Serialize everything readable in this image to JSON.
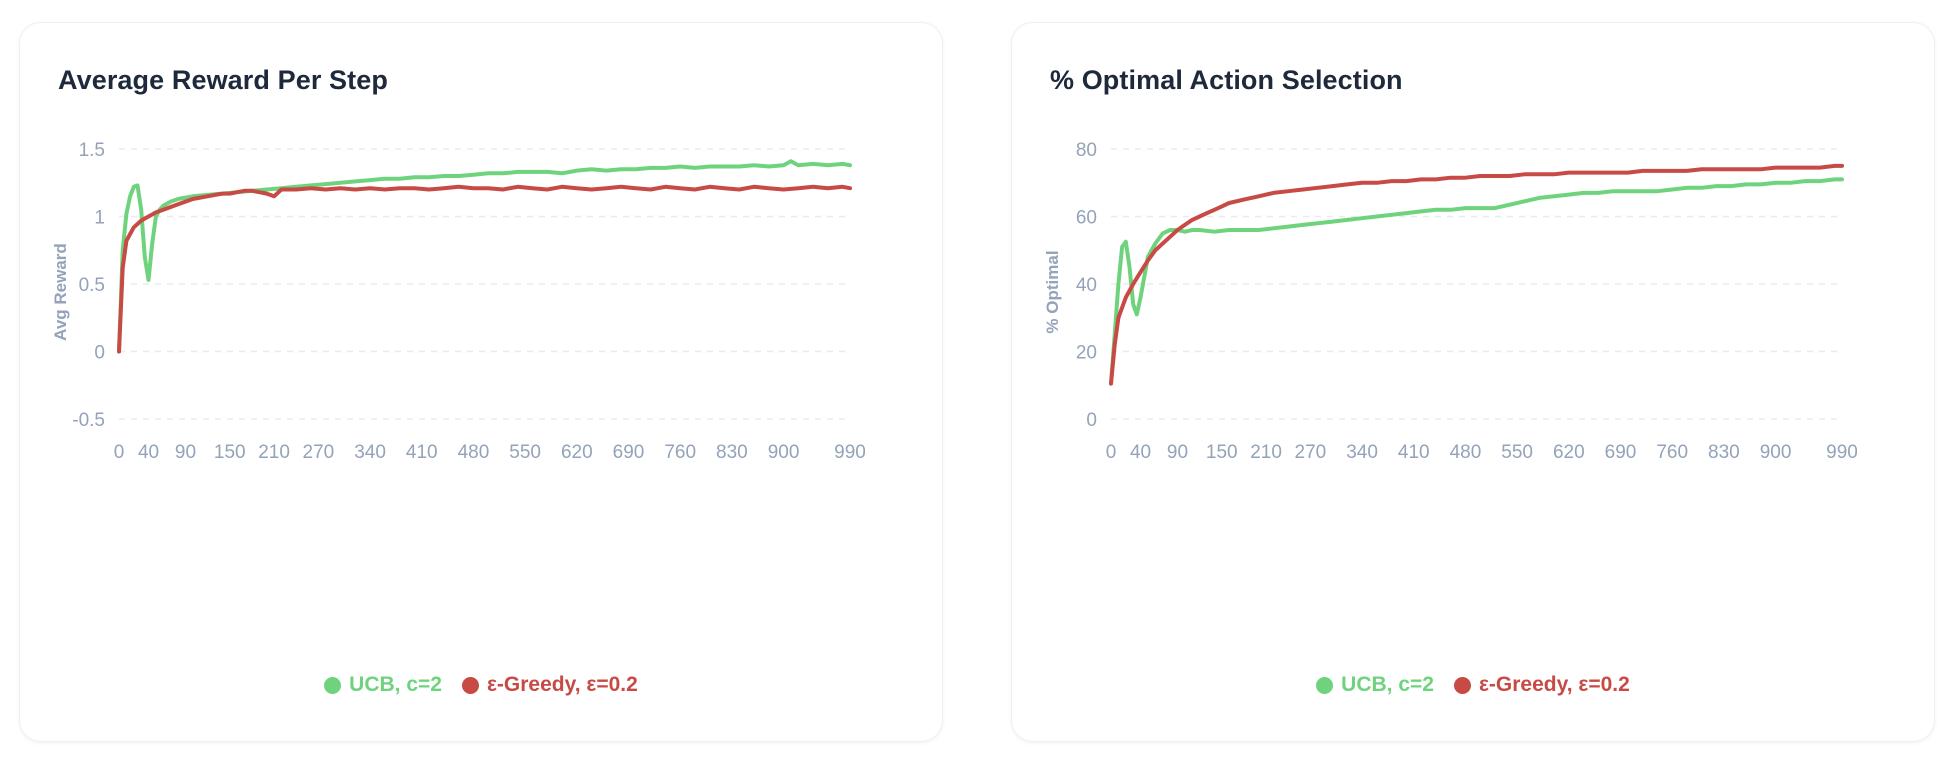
{
  "colors": {
    "ucb": "#6fd37e",
    "egreedy": "#c84a45",
    "grid": "#e8ebf0",
    "tick": "#94a3b8"
  },
  "legend": {
    "ucb_label": "UCB, c=2",
    "egreedy_label": "ε-Greedy, ε=0.2"
  },
  "chart_data": [
    {
      "type": "line",
      "title": "Average Reward Per Step",
      "xlabel": "",
      "ylabel": "Avg Reward",
      "ylim": [
        -0.5,
        1.5
      ],
      "xlim": [
        0,
        990
      ],
      "yticks": [
        "1.5",
        "1",
        "0.5",
        "0",
        "-0.5"
      ],
      "ytick_values": [
        1.5,
        1,
        0.5,
        0,
        -0.5
      ],
      "xticks": [
        "0",
        "40",
        "90",
        "150",
        "210",
        "270",
        "340",
        "410",
        "480",
        "550",
        "620",
        "690",
        "760",
        "830",
        "900",
        "990"
      ],
      "xtick_values": [
        0,
        40,
        90,
        150,
        210,
        270,
        340,
        410,
        480,
        550,
        620,
        690,
        760,
        830,
        900,
        990
      ],
      "grid": "horizontal dashed",
      "legend": "bottom-center",
      "series": [
        {
          "name": "UCB, c=2",
          "color": "#6fd37e",
          "x": [
            0,
            5,
            10,
            15,
            20,
            25,
            30,
            35,
            40,
            45,
            50,
            55,
            60,
            70,
            80,
            90,
            100,
            120,
            140,
            160,
            180,
            200,
            220,
            240,
            260,
            280,
            300,
            320,
            340,
            360,
            380,
            400,
            420,
            440,
            460,
            480,
            500,
            520,
            540,
            560,
            580,
            600,
            620,
            640,
            660,
            680,
            700,
            720,
            740,
            760,
            780,
            800,
            820,
            840,
            860,
            880,
            900,
            910,
            920,
            940,
            960,
            980,
            990
          ],
          "y": [
            0,
            0.75,
            1.02,
            1.15,
            1.22,
            1.23,
            1.05,
            0.7,
            0.53,
            0.8,
            1.0,
            1.05,
            1.08,
            1.11,
            1.13,
            1.14,
            1.15,
            1.16,
            1.17,
            1.18,
            1.19,
            1.2,
            1.21,
            1.22,
            1.23,
            1.24,
            1.25,
            1.26,
            1.27,
            1.28,
            1.28,
            1.29,
            1.29,
            1.3,
            1.3,
            1.31,
            1.32,
            1.32,
            1.33,
            1.33,
            1.33,
            1.32,
            1.34,
            1.35,
            1.34,
            1.35,
            1.35,
            1.36,
            1.36,
            1.37,
            1.36,
            1.37,
            1.37,
            1.37,
            1.38,
            1.37,
            1.38,
            1.41,
            1.38,
            1.39,
            1.38,
            1.39,
            1.38
          ]
        },
        {
          "name": "ε-Greedy, ε=0.2",
          "color": "#c84a45",
          "x": [
            0,
            5,
            10,
            20,
            30,
            40,
            50,
            60,
            70,
            80,
            90,
            100,
            110,
            120,
            130,
            140,
            150,
            160,
            170,
            180,
            190,
            200,
            210,
            220,
            240,
            260,
            280,
            300,
            320,
            340,
            360,
            380,
            400,
            420,
            440,
            460,
            480,
            500,
            520,
            540,
            560,
            580,
            600,
            620,
            640,
            660,
            680,
            700,
            720,
            740,
            760,
            780,
            800,
            820,
            840,
            860,
            880,
            900,
            920,
            940,
            960,
            980,
            990
          ],
          "y": [
            0,
            0.62,
            0.82,
            0.92,
            0.97,
            1.0,
            1.03,
            1.05,
            1.07,
            1.09,
            1.11,
            1.13,
            1.14,
            1.15,
            1.16,
            1.17,
            1.17,
            1.18,
            1.19,
            1.19,
            1.18,
            1.17,
            1.15,
            1.2,
            1.2,
            1.21,
            1.2,
            1.21,
            1.2,
            1.21,
            1.2,
            1.21,
            1.21,
            1.2,
            1.21,
            1.22,
            1.21,
            1.21,
            1.2,
            1.22,
            1.21,
            1.2,
            1.22,
            1.21,
            1.2,
            1.21,
            1.22,
            1.21,
            1.2,
            1.22,
            1.21,
            1.2,
            1.22,
            1.21,
            1.2,
            1.22,
            1.21,
            1.2,
            1.21,
            1.22,
            1.21,
            1.22,
            1.21
          ]
        }
      ]
    },
    {
      "type": "line",
      "title": "% Optimal Action Selection",
      "xlabel": "",
      "ylabel": "% Optimal",
      "ylim": [
        0,
        80
      ],
      "xlim": [
        0,
        990
      ],
      "yticks": [
        "80",
        "60",
        "40",
        "20",
        "0"
      ],
      "ytick_values": [
        80,
        60,
        40,
        20,
        0
      ],
      "xticks": [
        "0",
        "40",
        "90",
        "150",
        "210",
        "270",
        "340",
        "410",
        "480",
        "550",
        "620",
        "690",
        "760",
        "830",
        "900",
        "990"
      ],
      "xtick_values": [
        0,
        40,
        90,
        150,
        210,
        270,
        340,
        410,
        480,
        550,
        620,
        690,
        760,
        830,
        900,
        990
      ],
      "grid": "horizontal dashed",
      "legend": "bottom-center",
      "series": [
        {
          "name": "UCB, c=2",
          "color": "#6fd37e",
          "x": [
            0,
            5,
            10,
            15,
            20,
            25,
            30,
            35,
            40,
            50,
            60,
            70,
            80,
            90,
            100,
            110,
            120,
            140,
            160,
            180,
            200,
            220,
            240,
            260,
            280,
            300,
            320,
            340,
            360,
            380,
            400,
            420,
            440,
            460,
            480,
            500,
            520,
            540,
            560,
            580,
            600,
            620,
            640,
            660,
            680,
            700,
            720,
            740,
            760,
            780,
            800,
            820,
            840,
            860,
            880,
            900,
            920,
            940,
            960,
            980,
            990
          ],
          "y": [
            10.5,
            25,
            40,
            51,
            52.5,
            45,
            34,
            31,
            36,
            48,
            52,
            55,
            56,
            56,
            55.5,
            56,
            56,
            55.5,
            56,
            56,
            56,
            56.5,
            57,
            57.5,
            58,
            58.5,
            59,
            59.5,
            60,
            60.5,
            61,
            61.5,
            62,
            62,
            62.5,
            62.5,
            62.5,
            63.5,
            64.5,
            65.5,
            66,
            66.5,
            67,
            67,
            67.5,
            67.5,
            67.5,
            67.5,
            68,
            68.5,
            68.5,
            69,
            69,
            69.5,
            69.5,
            70,
            70,
            70.5,
            70.5,
            71,
            71
          ]
        },
        {
          "name": "ε-Greedy, ε=0.2",
          "color": "#c84a45",
          "x": [
            0,
            5,
            10,
            20,
            30,
            40,
            50,
            60,
            70,
            80,
            90,
            100,
            110,
            120,
            130,
            140,
            150,
            160,
            180,
            200,
            220,
            240,
            260,
            280,
            300,
            320,
            340,
            360,
            380,
            400,
            420,
            440,
            460,
            480,
            500,
            520,
            540,
            560,
            580,
            600,
            620,
            640,
            660,
            680,
            700,
            720,
            740,
            760,
            780,
            800,
            820,
            840,
            860,
            880,
            900,
            920,
            940,
            960,
            980,
            990
          ],
          "y": [
            10.5,
            22,
            30,
            36,
            40,
            43.5,
            47,
            50,
            52,
            54,
            56,
            57.5,
            59,
            60,
            61,
            62,
            63,
            64,
            65,
            66,
            67,
            67.5,
            68,
            68.5,
            69,
            69.5,
            70,
            70,
            70.5,
            70.5,
            71,
            71,
            71.5,
            71.5,
            72,
            72,
            72,
            72.5,
            72.5,
            72.5,
            73,
            73,
            73,
            73,
            73,
            73.5,
            73.5,
            73.5,
            73.5,
            74,
            74,
            74,
            74,
            74,
            74.5,
            74.5,
            74.5,
            74.5,
            75,
            75
          ]
        }
      ]
    }
  ]
}
